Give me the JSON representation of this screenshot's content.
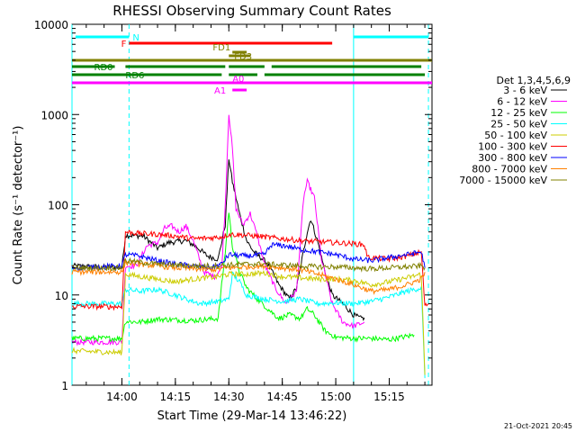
{
  "chart_data": {
    "type": "line",
    "title": "RHESSI Observing Summary Count Rates",
    "xlabel": "Start Time (29-Mar-14 13:46:22)",
    "ylabel": "Count Rate (s⁻¹ detector⁻¹)",
    "yscale": "log",
    "ylim": [
      1,
      10000
    ],
    "xlim": [
      "13:46:22",
      "15:27:00"
    ],
    "x_ticks": [
      "14:00",
      "14:15",
      "14:30",
      "14:45",
      "15:00",
      "15:15"
    ],
    "y_ticks": [
      "1",
      "10",
      "100",
      "1000",
      "10000"
    ],
    "legend_title": "Det 1,3,4,5,6,9",
    "legend_position": "right",
    "footer_date": "21-Oct-2021 20:45",
    "flag_bars": [
      {
        "label": "N",
        "color": "#00ffff",
        "segments": [
          [
            "13:47",
            "14:02"
          ],
          [
            "15:05",
            "15:26"
          ]
        ]
      },
      {
        "label": "F",
        "color": "#ff0000",
        "segments": [
          [
            "14:02",
            "14:59"
          ]
        ]
      },
      {
        "label": "FD1",
        "color": "#808000",
        "segments": [
          [
            "14:31",
            "14:35"
          ]
        ]
      },
      {
        "label": "FD3",
        "color": "#808000",
        "segments": [
          [
            "14:30",
            "14:36"
          ]
        ]
      },
      {
        "label": "",
        "color": "#808000",
        "segments": [
          [
            "13:46",
            "15:27"
          ]
        ]
      },
      {
        "label": "RD0",
        "color": "#008000",
        "segments": [
          [
            "13:46",
            "13:58"
          ],
          [
            "14:01",
            "14:29"
          ],
          [
            "14:30",
            "14:40"
          ],
          [
            "14:42",
            "15:24"
          ]
        ]
      },
      {
        "label": "RD6",
        "color": "#008000",
        "segments": [
          [
            "13:46",
            "14:28"
          ],
          [
            "14:30",
            "14:38"
          ],
          [
            "14:40",
            "15:25"
          ]
        ]
      },
      {
        "label": "A0",
        "color": "#ff00ff",
        "segments": [
          [
            "13:46",
            "15:27"
          ]
        ]
      },
      {
        "label": "A1",
        "color": "#ff00ff",
        "segments": [
          [
            "14:31",
            "14:35"
          ]
        ]
      }
    ],
    "vlines": [
      {
        "time": "13:46",
        "style": "solid",
        "color": "#00ffff"
      },
      {
        "time": "14:02",
        "style": "dashed",
        "color": "#00ffff"
      },
      {
        "time": "15:05",
        "style": "solid",
        "color": "#00ffff"
      },
      {
        "time": "15:26",
        "style": "dashed",
        "color": "#00ffff"
      }
    ],
    "series": [
      {
        "name": "3 - 6 keV",
        "color": "#000000",
        "points": [
          [
            "13:46",
            21
          ],
          [
            "14:00",
            20
          ],
          [
            "14:01",
            46
          ],
          [
            "14:06",
            45
          ],
          [
            "14:10",
            33
          ],
          [
            "14:13",
            38
          ],
          [
            "14:18",
            40
          ],
          [
            "14:21",
            34
          ],
          [
            "14:24",
            27
          ],
          [
            "14:27",
            25
          ],
          [
            "14:29",
            60
          ],
          [
            "14:30",
            330
          ],
          [
            "14:31",
            180
          ],
          [
            "14:33",
            80
          ],
          [
            "14:35",
            40
          ],
          [
            "14:37",
            30
          ],
          [
            "14:39",
            26
          ],
          [
            "14:41",
            22
          ],
          [
            "14:44",
            13
          ],
          [
            "14:47",
            9
          ],
          [
            "14:49",
            12
          ],
          [
            "14:52",
            50
          ],
          [
            "14:53",
            70
          ],
          [
            "14:55",
            38
          ],
          [
            "14:57",
            18
          ],
          [
            "14:59",
            10
          ],
          [
            "15:02",
            8
          ],
          [
            "15:05",
            6
          ],
          [
            "15:07",
            5.5
          ],
          [
            "15:08",
            5.6
          ]
        ]
      },
      {
        "name": "6 - 12 keV",
        "color": "#ff00ff",
        "points": [
          [
            "13:46",
            3
          ],
          [
            "14:00",
            3
          ],
          [
            "14:01",
            21
          ],
          [
            "14:04",
            21
          ],
          [
            "14:07",
            35
          ],
          [
            "14:10",
            38
          ],
          [
            "14:12",
            55
          ],
          [
            "14:14",
            58
          ],
          [
            "14:16",
            50
          ],
          [
            "14:18",
            58
          ],
          [
            "14:20",
            40
          ],
          [
            "14:23",
            18
          ],
          [
            "14:26",
            16
          ],
          [
            "14:28",
            20
          ],
          [
            "14:29",
            100
          ],
          [
            "14:30",
            1050
          ],
          [
            "14:31",
            420
          ],
          [
            "14:32",
            90
          ],
          [
            "14:34",
            60
          ],
          [
            "14:36",
            80
          ],
          [
            "14:38",
            45
          ],
          [
            "14:40",
            22
          ],
          [
            "14:43",
            12
          ],
          [
            "14:46",
            8
          ],
          [
            "14:49",
            11
          ],
          [
            "14:51",
            120
          ],
          [
            "14:52",
            180
          ],
          [
            "14:54",
            120
          ],
          [
            "14:56",
            25
          ],
          [
            "14:59",
            8
          ],
          [
            "15:02",
            5
          ],
          [
            "15:05",
            4.5
          ],
          [
            "15:08",
            5
          ]
        ]
      },
      {
        "name": "12 - 25 keV",
        "color": "#00ff00",
        "points": [
          [
            "13:46",
            3.3
          ],
          [
            "14:00",
            3.3
          ],
          [
            "14:01",
            5.1
          ],
          [
            "14:05",
            5
          ],
          [
            "14:10",
            5.4
          ],
          [
            "14:20",
            5.2
          ],
          [
            "14:27",
            5.5
          ],
          [
            "14:29",
            30
          ],
          [
            "14:30",
            85
          ],
          [
            "14:31",
            35
          ],
          [
            "14:33",
            18
          ],
          [
            "14:35",
            12
          ],
          [
            "14:38",
            9
          ],
          [
            "14:41",
            7
          ],
          [
            "14:44",
            5.5
          ],
          [
            "14:47",
            6
          ],
          [
            "14:50",
            5.5
          ],
          [
            "14:52",
            7
          ],
          [
            "14:54",
            6
          ],
          [
            "14:57",
            4
          ],
          [
            "15:00",
            3.4
          ],
          [
            "15:05",
            3.3
          ],
          [
            "15:10",
            3.3
          ],
          [
            "15:15",
            3.2
          ],
          [
            "15:22",
            3.6
          ]
        ]
      },
      {
        "name": "25 - 50 keV",
        "color": "#00ffff",
        "points": [
          [
            "13:46",
            8
          ],
          [
            "14:00",
            8
          ],
          [
            "14:01",
            11.5
          ],
          [
            "14:05",
            11
          ],
          [
            "14:10",
            11.5
          ],
          [
            "14:15",
            10
          ],
          [
            "14:18",
            9
          ],
          [
            "14:22",
            8
          ],
          [
            "14:27",
            8.5
          ],
          [
            "14:30",
            9
          ],
          [
            "14:31",
            17
          ],
          [
            "14:33",
            14
          ],
          [
            "14:35",
            10
          ],
          [
            "14:40",
            9
          ],
          [
            "14:45",
            8.5
          ],
          [
            "14:50",
            9
          ],
          [
            "14:55",
            8
          ],
          [
            "15:00",
            8.2
          ],
          [
            "15:05",
            8
          ],
          [
            "15:10",
            8.5
          ],
          [
            "15:15",
            9.5
          ],
          [
            "15:20",
            11
          ],
          [
            "15:24",
            12
          ],
          [
            "15:25",
            1.2
          ]
        ]
      },
      {
        "name": "50 - 100 keV",
        "color": "#cccc00",
        "points": [
          [
            "13:46",
            2.4
          ],
          [
            "14:00",
            2.3
          ],
          [
            "14:01",
            17
          ],
          [
            "14:05",
            16
          ],
          [
            "14:10",
            15
          ],
          [
            "14:15",
            14
          ],
          [
            "14:20",
            15
          ],
          [
            "14:27",
            16
          ],
          [
            "14:30",
            17
          ],
          [
            "14:35",
            17
          ],
          [
            "14:40",
            17.5
          ],
          [
            "14:45",
            16
          ],
          [
            "14:50",
            15.5
          ],
          [
            "14:55",
            15
          ],
          [
            "15:00",
            15
          ],
          [
            "15:05",
            14.5
          ],
          [
            "15:10",
            13
          ],
          [
            "15:15",
            14
          ],
          [
            "15:20",
            15.5
          ],
          [
            "15:24",
            17
          ],
          [
            "15:25",
            1.3
          ]
        ]
      },
      {
        "name": "100 - 300 keV",
        "color": "#ff0000",
        "points": [
          [
            "13:46",
            7.5
          ],
          [
            "14:00",
            7.4
          ],
          [
            "14:01",
            50
          ],
          [
            "14:05",
            48
          ],
          [
            "14:10",
            47
          ],
          [
            "14:15",
            45
          ],
          [
            "14:20",
            42
          ],
          [
            "14:25",
            43
          ],
          [
            "14:28",
            44
          ],
          [
            "14:30",
            47
          ],
          [
            "14:35",
            46
          ],
          [
            "14:40",
            44
          ],
          [
            "14:45",
            42
          ],
          [
            "14:50",
            40
          ],
          [
            "14:55",
            39
          ],
          [
            "15:00",
            38
          ],
          [
            "15:05",
            37
          ],
          [
            "15:08",
            36
          ],
          [
            "15:09",
            26
          ],
          [
            "15:15",
            25
          ],
          [
            "15:20",
            27
          ],
          [
            "15:24",
            30
          ],
          [
            "15:25",
            7.5
          ],
          [
            "15:26",
            8
          ]
        ]
      },
      {
        "name": "300 - 800 keV",
        "color": "#0000ff",
        "points": [
          [
            "13:46",
            20
          ],
          [
            "14:00",
            21
          ],
          [
            "14:01",
            28
          ],
          [
            "14:05",
            27
          ],
          [
            "14:10",
            24
          ],
          [
            "14:15",
            22
          ],
          [
            "14:20",
            21
          ],
          [
            "14:25",
            20
          ],
          [
            "14:28",
            22
          ],
          [
            "14:30",
            28
          ],
          [
            "14:35",
            27
          ],
          [
            "14:40",
            28
          ],
          [
            "14:42",
            36
          ],
          [
            "14:46",
            35
          ],
          [
            "14:50",
            32
          ],
          [
            "14:55",
            30
          ],
          [
            "15:00",
            28
          ],
          [
            "15:05",
            25
          ],
          [
            "15:10",
            24
          ],
          [
            "15:15",
            26
          ],
          [
            "15:20",
            28
          ],
          [
            "15:24",
            30
          ],
          [
            "15:25",
            20
          ]
        ]
      },
      {
        "name": "800 - 7000 keV",
        "color": "#ff8000",
        "points": [
          [
            "13:46",
            18
          ],
          [
            "14:00",
            18
          ],
          [
            "14:01",
            23
          ],
          [
            "14:05",
            22
          ],
          [
            "14:10",
            21
          ],
          [
            "14:15",
            20
          ],
          [
            "14:20",
            19.5
          ],
          [
            "14:25",
            19
          ],
          [
            "14:28",
            19.5
          ],
          [
            "14:30",
            20
          ],
          [
            "14:35",
            20.5
          ],
          [
            "14:40",
            21
          ],
          [
            "14:45",
            20
          ],
          [
            "14:50",
            19
          ],
          [
            "14:55",
            17
          ],
          [
            "15:00",
            15
          ],
          [
            "15:05",
            13
          ],
          [
            "15:10",
            11
          ],
          [
            "15:15",
            11.5
          ],
          [
            "15:20",
            13
          ],
          [
            "15:24",
            15
          ],
          [
            "15:25",
            18
          ]
        ]
      },
      {
        "name": "7000 - 15000 keV",
        "color": "#808000",
        "points": [
          [
            "13:46",
            20
          ],
          [
            "14:00",
            20
          ],
          [
            "14:01",
            24
          ],
          [
            "14:05",
            23
          ],
          [
            "14:10",
            22
          ],
          [
            "14:15",
            21.5
          ],
          [
            "14:20",
            21
          ],
          [
            "14:25",
            21
          ],
          [
            "14:30",
            21.5
          ],
          [
            "14:35",
            22
          ],
          [
            "14:40",
            22
          ],
          [
            "14:45",
            21.5
          ],
          [
            "14:50",
            21
          ],
          [
            "14:55",
            20.5
          ],
          [
            "15:00",
            20.5
          ],
          [
            "15:05",
            20
          ],
          [
            "15:10",
            19.5
          ],
          [
            "15:15",
            20
          ],
          [
            "15:20",
            20.5
          ],
          [
            "15:24",
            21
          ],
          [
            "15:25",
            20
          ]
        ]
      }
    ]
  }
}
